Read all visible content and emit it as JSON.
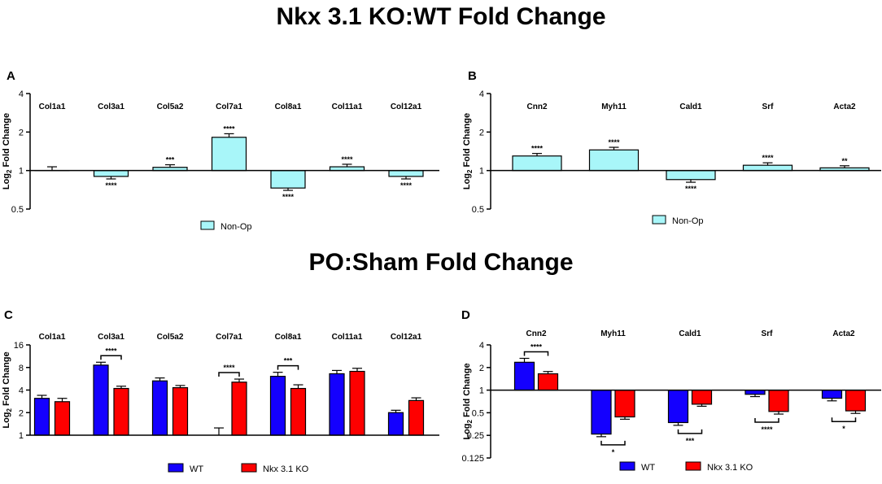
{
  "titles": {
    "top": "Nkx 3.1 KO:WT Fold Change",
    "bottom": "PO:Sham Fold Change"
  },
  "colors": {
    "nonop": "#a8f6f9",
    "wt": "#1400fe",
    "ko": "#fe0000",
    "axis": "#000000"
  },
  "chart_data": [
    {
      "panel": "A",
      "type": "bar",
      "scale": "log2",
      "ylabel": "Log2 Fold Change",
      "ylabel_base": "Log",
      "ylabel_sub": "2",
      "ylabel_rest": " Fold Change",
      "yticks": [
        0.5,
        1,
        2,
        4
      ],
      "ytick_labels": [
        "0.5",
        "1",
        "2",
        "4"
      ],
      "ylim": [
        0.5,
        4
      ],
      "categories": [
        "Col1a1",
        "Col3a1",
        "Col5a2",
        "Col7a1",
        "Col8a1",
        "Col11a1",
        "Col12a1"
      ],
      "series": [
        {
          "name": "Non-Op",
          "color": "#a8f6f9",
          "values": [
            1.0,
            0.9,
            1.06,
            1.82,
            0.73,
            1.07,
            0.9
          ],
          "errors": [
            0.07,
            0.04,
            0.05,
            0.12,
            0.03,
            0.05,
            0.04
          ],
          "sig": [
            "",
            "****",
            "***",
            "****",
            "****",
            "****",
            "****"
          ]
        }
      ],
      "legend": [
        "Non-Op"
      ],
      "legend_position": "bottom"
    },
    {
      "panel": "B",
      "type": "bar",
      "scale": "log2",
      "ylabel": "Log2 Fold Change",
      "ylabel_base": "Log",
      "ylabel_sub": "2",
      "ylabel_rest": " Fold Change",
      "yticks": [
        0.5,
        1,
        2,
        4
      ],
      "ytick_labels": [
        "0.5",
        "1",
        "2",
        "4"
      ],
      "ylim": [
        0.5,
        4
      ],
      "categories": [
        "Cnn2",
        "Myh11",
        "Cald1",
        "Srf",
        "Acta2"
      ],
      "series": [
        {
          "name": "Non-Op",
          "color": "#a8f6f9",
          "values": [
            1.3,
            1.45,
            0.85,
            1.1,
            1.05
          ],
          "errors": [
            0.06,
            0.07,
            0.04,
            0.05,
            0.04
          ],
          "sig": [
            "****",
            "****",
            "****",
            "****",
            "**"
          ]
        }
      ],
      "legend": [
        "Non-Op"
      ],
      "legend_position": "bottom"
    },
    {
      "panel": "C",
      "type": "bar",
      "scale": "log2",
      "ylabel": "Log2 Fold Change",
      "ylabel_base": "Log",
      "ylabel_sub": "2",
      "ylabel_rest": " Fold Change",
      "yticks": [
        1,
        2,
        4,
        8,
        16
      ],
      "ytick_labels": [
        "1",
        "2",
        "4",
        "8",
        "16"
      ],
      "ylim": [
        1,
        16
      ],
      "categories": [
        "Col1a1",
        "Col3a1",
        "Col5a2",
        "Col7a1",
        "Col8a1",
        "Col11a1",
        "Col12a1"
      ],
      "series": [
        {
          "name": "WT",
          "color": "#1400fe",
          "values": [
            3.1,
            8.6,
            5.3,
            1.0,
            6.1,
            6.6,
            2.0
          ],
          "errors": [
            0.3,
            0.8,
            0.5,
            0.25,
            0.8,
            0.7,
            0.15
          ]
        },
        {
          "name": "Nkx 3.1 KO",
          "color": "#fe0000",
          "values": [
            2.8,
            4.2,
            4.3,
            5.1,
            4.2,
            7.1,
            2.9
          ],
          "errors": [
            0.3,
            0.3,
            0.3,
            0.5,
            0.5,
            0.7,
            0.25
          ]
        }
      ],
      "comparisons": [
        {
          "category": "Col3a1",
          "label": "****"
        },
        {
          "category": "Col7a1",
          "label": "****"
        },
        {
          "category": "Col8a1",
          "label": "***"
        }
      ],
      "legend": [
        "WT",
        "Nkx 3.1 KO"
      ],
      "legend_position": "bottom"
    },
    {
      "panel": "D",
      "type": "bar",
      "scale": "log2",
      "ylabel": "Log2 Fold Change",
      "ylabel_base": "Log",
      "ylabel_sub": "2",
      "ylabel_rest": " Fold Change",
      "yticks": [
        0.125,
        0.25,
        0.5,
        1,
        2,
        4
      ],
      "ytick_labels": [
        "0.125",
        "0.25",
        "0.5",
        "1",
        "2",
        "4"
      ],
      "ylim": [
        0.125,
        4
      ],
      "categories": [
        "Cnn2",
        "Myh11",
        "Cald1",
        "Srf",
        "Acta2"
      ],
      "series": [
        {
          "name": "WT",
          "color": "#1400fe",
          "values": [
            2.35,
            0.26,
            0.37,
            0.88,
            0.78
          ],
          "errors": [
            0.3,
            0.02,
            0.03,
            0.06,
            0.06
          ]
        },
        {
          "name": "Nkx 3.1 KO",
          "color": "#fe0000",
          "values": [
            1.65,
            0.44,
            0.65,
            0.52,
            0.53
          ],
          "errors": [
            0.12,
            0.03,
            0.04,
            0.04,
            0.04
          ]
        }
      ],
      "comparisons": [
        {
          "category": "Cnn2",
          "label": "****",
          "position": "above"
        },
        {
          "category": "Myh11",
          "label": "*",
          "position": "below"
        },
        {
          "category": "Cald1",
          "label": "***",
          "position": "below"
        },
        {
          "category": "Srf",
          "label": "****",
          "position": "below"
        },
        {
          "category": "Acta2",
          "label": "*",
          "position": "below"
        }
      ],
      "legend": [
        "WT",
        "Nkx 3.1 KO"
      ],
      "legend_position": "bottom"
    }
  ]
}
